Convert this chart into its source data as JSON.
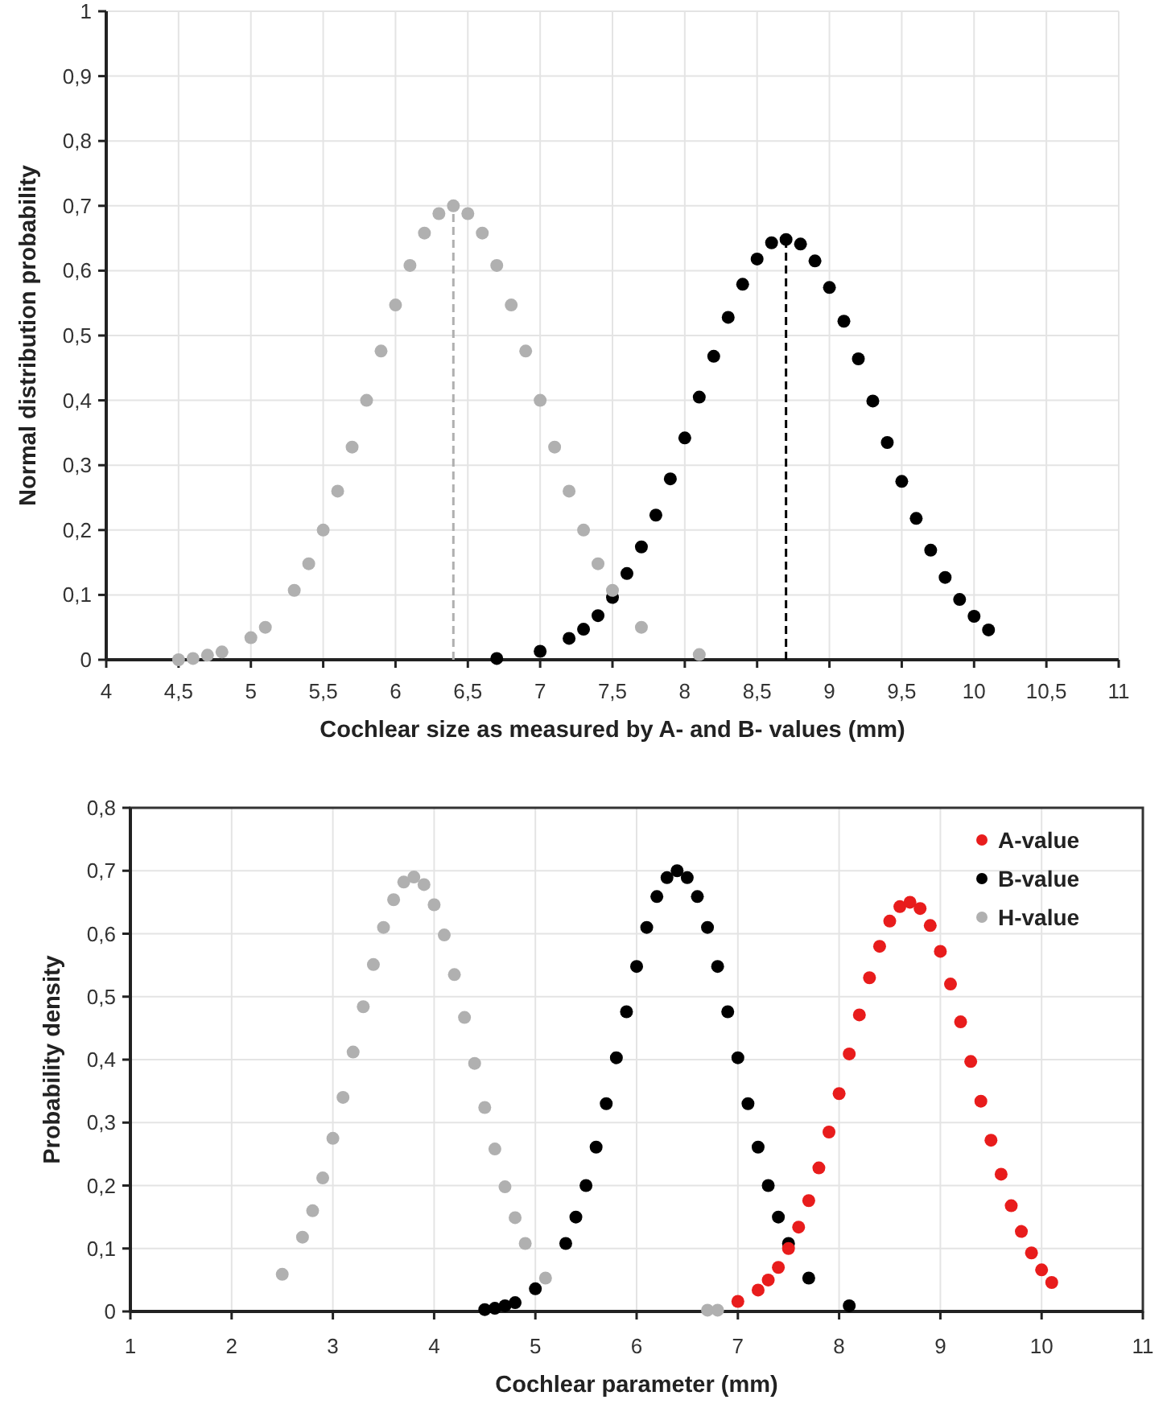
{
  "chart_data": [
    {
      "type": "scatter",
      "xlabel": "Cochlear size as measured by A- and B- values (mm)",
      "ylabel": "Normal distribution probability",
      "xlim": [
        4,
        11
      ],
      "ylim": [
        0,
        1
      ],
      "xticks": [
        {
          "value": 4,
          "label": "4"
        },
        {
          "value": 4.5,
          "label": "4,5"
        },
        {
          "value": 5,
          "label": "5"
        },
        {
          "value": 5.5,
          "label": "5,5"
        },
        {
          "value": 6,
          "label": "6"
        },
        {
          "value": 6.5,
          "label": "6,5"
        },
        {
          "value": 7,
          "label": "7"
        },
        {
          "value": 7.5,
          "label": "7,5"
        },
        {
          "value": 8,
          "label": "8"
        },
        {
          "value": 8.5,
          "label": "8,5"
        },
        {
          "value": 9,
          "label": "9"
        },
        {
          "value": 9.5,
          "label": "9,5"
        },
        {
          "value": 10,
          "label": "10"
        },
        {
          "value": 10.5,
          "label": "10,5"
        },
        {
          "value": 11,
          "label": "11"
        }
      ],
      "yticks": [
        {
          "value": 0,
          "label": "0"
        },
        {
          "value": 0.1,
          "label": "0,1"
        },
        {
          "value": 0.2,
          "label": "0,2"
        },
        {
          "value": 0.3,
          "label": "0,3"
        },
        {
          "value": 0.4,
          "label": "0,4"
        },
        {
          "value": 0.5,
          "label": "0,5"
        },
        {
          "value": 0.6,
          "label": "0,6"
        },
        {
          "value": 0.7,
          "label": "0,7"
        },
        {
          "value": 0.8,
          "label": "0,8"
        },
        {
          "value": 0.9,
          "label": "0,9"
        },
        {
          "value": 1,
          "label": "1"
        }
      ],
      "grid": true,
      "marker": "circle",
      "series": [
        {
          "type": "line",
          "color": "#b0b0b0",
          "line_style": "dashed",
          "marker": "none",
          "x": [
            6.4,
            6.4
          ],
          "values": [
            0,
            0.7
          ]
        },
        {
          "type": "line",
          "color": "#000000",
          "line_style": "dashed",
          "marker": "none",
          "x": [
            8.7,
            8.7
          ],
          "values": [
            0,
            0.648
          ]
        },
        {
          "color": "#b0b0b0",
          "x": [
            4.5,
            4.6,
            4.7,
            4.8,
            5.0,
            5.1,
            5.3,
            5.4,
            5.5,
            5.6,
            5.7,
            5.8,
            5.9,
            6.0,
            6.1,
            6.2,
            6.3,
            6.4,
            6.5,
            6.6,
            6.7,
            6.8,
            6.9,
            7.0,
            7.1,
            7.2,
            7.3,
            7.4,
            7.5,
            7.7,
            8.1
          ],
          "values": [
            0,
            0.002,
            0.007,
            0.012,
            0.034,
            0.05,
            0.107,
            0.148,
            0.2,
            0.26,
            0.328,
            0.4,
            0.476,
            0.547,
            0.608,
            0.658,
            0.688,
            0.7,
            0.688,
            0.658,
            0.608,
            0.547,
            0.476,
            0.4,
            0.328,
            0.26,
            0.2,
            0.148,
            0.107,
            0.05,
            0.008
          ]
        },
        {
          "color": "#000000",
          "x": [
            6.7,
            7.0,
            7.2,
            7.3,
            7.4,
            7.5,
            7.6,
            7.7,
            7.8,
            7.9,
            8.0,
            8.1,
            8.2,
            8.3,
            8.4,
            8.5,
            8.6,
            8.7,
            8.8,
            8.9,
            9.0,
            9.1,
            9.2,
            9.3,
            9.4,
            9.5,
            9.6,
            9.7,
            9.8,
            9.9,
            10.0,
            10.1
          ],
          "values": [
            0.002,
            0.013,
            0.033,
            0.047,
            0.068,
            0.096,
            0.133,
            0.174,
            0.223,
            0.279,
            0.342,
            0.405,
            0.468,
            0.528,
            0.579,
            0.618,
            0.643,
            0.648,
            0.641,
            0.615,
            0.574,
            0.522,
            0.464,
            0.399,
            0.335,
            0.275,
            0.218,
            0.169,
            0.127,
            0.093,
            0.067,
            0.046
          ]
        }
      ]
    },
    {
      "type": "scatter",
      "xlabel": "Cochlear parameter (mm)",
      "ylabel": "Probability density",
      "xlim": [
        1,
        11
      ],
      "ylim": [
        0,
        0.8
      ],
      "xticks": [
        1,
        2,
        3,
        4,
        5,
        6,
        7,
        8,
        9,
        10,
        11
      ],
      "yticks": [
        {
          "value": 0,
          "label": "0"
        },
        {
          "value": 0.1,
          "label": "0,1"
        },
        {
          "value": 0.2,
          "label": "0,2"
        },
        {
          "value": 0.3,
          "label": "0,3"
        },
        {
          "value": 0.4,
          "label": "0,4"
        },
        {
          "value": 0.5,
          "label": "0,5"
        },
        {
          "value": 0.6,
          "label": "0,6"
        },
        {
          "value": 0.7,
          "label": "0,7"
        },
        {
          "value": 0.8,
          "label": "0,8"
        }
      ],
      "grid": true,
      "marker": "circle",
      "legend": "top right",
      "series": [
        {
          "name": "A-value",
          "color": "#e81c1c",
          "x": [
            7.0,
            7.2,
            7.3,
            7.4,
            7.5,
            7.6,
            7.7,
            7.8,
            7.9,
            8.0,
            8.1,
            8.2,
            8.3,
            8.4,
            8.5,
            8.6,
            8.7,
            8.8,
            8.9,
            9.0,
            9.1,
            9.2,
            9.3,
            9.4,
            9.5,
            9.6,
            9.7,
            9.8,
            9.9,
            10.0,
            10.1
          ],
          "values": [
            0.016,
            0.034,
            0.05,
            0.07,
            0.1,
            0.134,
            0.176,
            0.228,
            0.285,
            0.346,
            0.409,
            0.471,
            0.53,
            0.58,
            0.62,
            0.643,
            0.65,
            0.64,
            0.613,
            0.572,
            0.52,
            0.46,
            0.397,
            0.334,
            0.272,
            0.218,
            0.168,
            0.127,
            0.093,
            0.066,
            0.046
          ]
        },
        {
          "name": "B-value",
          "color": "#000000",
          "x": [
            4.5,
            4.6,
            4.7,
            4.8,
            5.0,
            5.3,
            5.4,
            5.5,
            5.6,
            5.7,
            5.8,
            5.9,
            6.0,
            6.1,
            6.2,
            6.3,
            6.4,
            6.5,
            6.6,
            6.7,
            6.8,
            6.9,
            7.0,
            7.1,
            7.2,
            7.3,
            7.4,
            7.5,
            7.7,
            8.1
          ],
          "values": [
            0.003,
            0.005,
            0.009,
            0.014,
            0.036,
            0.108,
            0.15,
            0.2,
            0.261,
            0.33,
            0.403,
            0.476,
            0.548,
            0.61,
            0.659,
            0.689,
            0.7,
            0.689,
            0.659,
            0.61,
            0.548,
            0.476,
            0.403,
            0.33,
            0.261,
            0.2,
            0.15,
            0.108,
            0.053,
            0.009
          ]
        },
        {
          "name": "H-value",
          "color": "#b0b0b0",
          "x": [
            2.5,
            2.7,
            2.8,
            2.9,
            3.0,
            3.1,
            3.2,
            3.3,
            3.4,
            3.5,
            3.6,
            3.7,
            3.8,
            3.9,
            4.0,
            4.1,
            4.2,
            4.3,
            4.4,
            4.5,
            4.6,
            4.7,
            4.8,
            4.9,
            5.1,
            6.7,
            6.8
          ],
          "values": [
            0.059,
            0.118,
            0.16,
            0.212,
            0.275,
            0.34,
            0.412,
            0.484,
            0.551,
            0.61,
            0.654,
            0.682,
            0.69,
            0.678,
            0.646,
            0.598,
            0.535,
            0.467,
            0.394,
            0.324,
            0.258,
            0.198,
            0.149,
            0.108,
            0.053,
            0.002,
            0.002
          ]
        }
      ]
    }
  ]
}
